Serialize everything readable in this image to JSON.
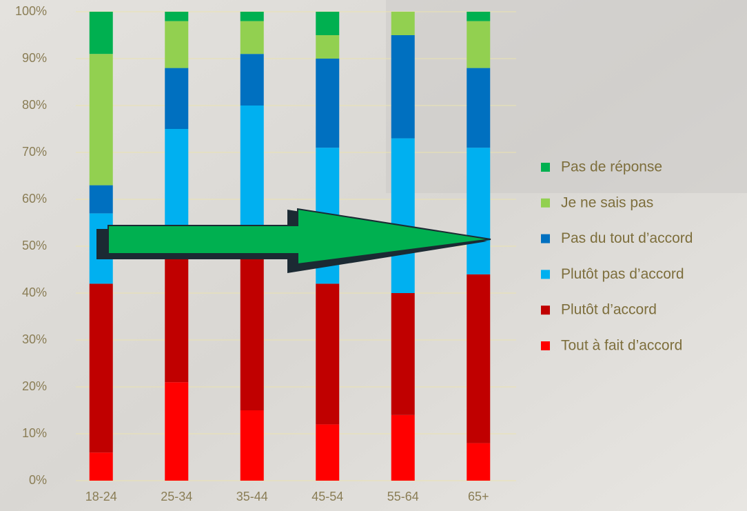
{
  "chart_data": {
    "type": "stacked_bar",
    "categories": [
      "18-24",
      "25-34",
      "35-44",
      "45-54",
      "55-64",
      "65+"
    ],
    "series": [
      {
        "name": "Tout à fait d’accord",
        "color": "#ff0000",
        "values": [
          6,
          21,
          15,
          12,
          14,
          8
        ]
      },
      {
        "name": "Plutôt d’accord",
        "color": "#c00000",
        "values": [
          36,
          29,
          35,
          30,
          26,
          36
        ]
      },
      {
        "name": "Plutôt pas d’accord",
        "color": "#00b0f0",
        "values": [
          15,
          25,
          30,
          29,
          33,
          27
        ]
      },
      {
        "name": "Pas du tout d’accord",
        "color": "#0070c0",
        "values": [
          6,
          13,
          11,
          19,
          22,
          17
        ]
      },
      {
        "name": "Je ne sais pas",
        "color": "#92d050",
        "values": [
          28,
          10,
          7,
          5,
          5,
          10
        ]
      },
      {
        "name": "Pas de réponse",
        "color": "#00b050",
        "values": [
          9,
          2,
          2,
          5,
          0,
          2
        ]
      }
    ],
    "ylim": [
      0,
      100
    ],
    "yticks": [
      {
        "value": 0,
        "label": "0%"
      },
      {
        "value": 10,
        "label": "10%"
      },
      {
        "value": 20,
        "label": "20%"
      },
      {
        "value": 30,
        "label": "30%"
      },
      {
        "value": 40,
        "label": "40%"
      },
      {
        "value": 50,
        "label": "50%"
      },
      {
        "value": 60,
        "label": "60%"
      },
      {
        "value": 70,
        "label": "70%"
      },
      {
        "value": 80,
        "label": "80%"
      },
      {
        "value": 90,
        "label": "90%"
      },
      {
        "value": 100,
        "label": "100%"
      }
    ],
    "grid": true
  }
}
